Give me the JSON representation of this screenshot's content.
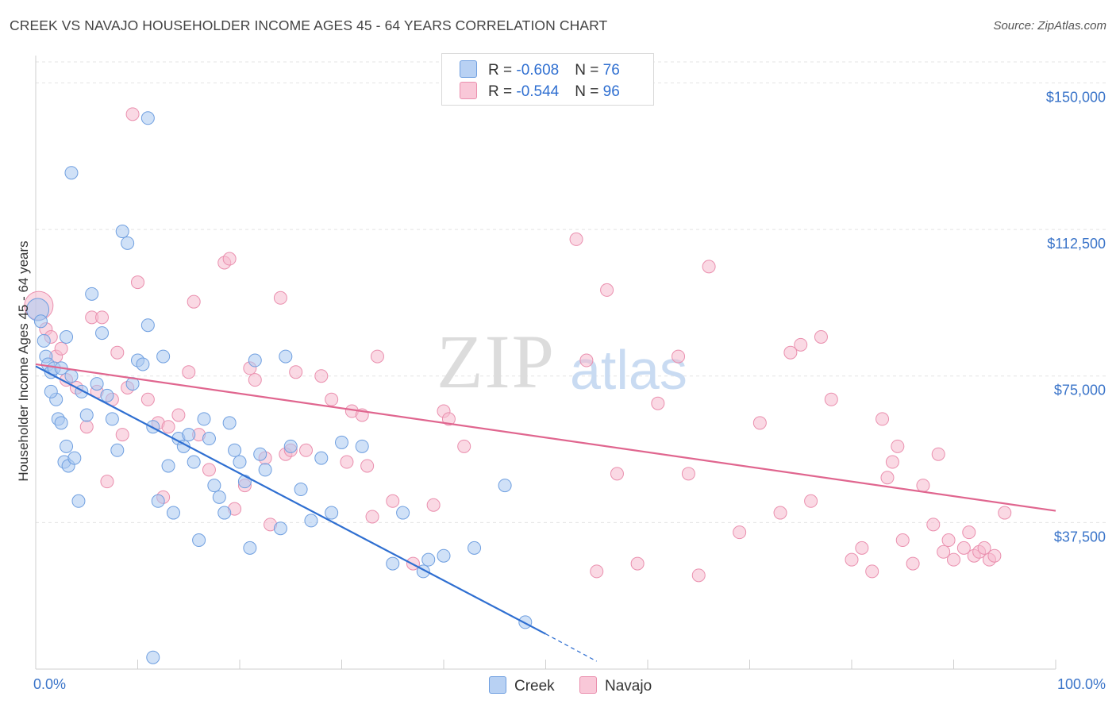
{
  "title": "CREEK VS NAVAJO HOUSEHOLDER INCOME AGES 45 - 64 YEARS CORRELATION CHART",
  "source": "Source: ZipAtlas.com",
  "watermark": {
    "zip": "ZIP",
    "atlas": "atlas"
  },
  "legend": {
    "creek": {
      "r_label": "R = ",
      "r_value": "-0.608",
      "n_label": "N = ",
      "n_value": "76"
    },
    "navajo": {
      "r_label": "R = ",
      "r_value": "-0.544",
      "n_label": "N = ",
      "n_value": "96"
    }
  },
  "chart_data": {
    "type": "scatter",
    "title": "CREEK VS NAVAJO HOUSEHOLDER INCOME AGES 45 - 64 YEARS CORRELATION CHART",
    "xlabel": "",
    "ylabel": "Householder Income Ages 45 - 64 years",
    "xlim": [
      0,
      100
    ],
    "ylim": [
      0,
      157000
    ],
    "x_tick_labels": {
      "min": "0.0%",
      "max": "100.0%"
    },
    "y_ticks": [
      {
        "value": 37500,
        "label": "$37,500"
      },
      {
        "value": 75000,
        "label": "$75,000"
      },
      {
        "value": 112500,
        "label": "$112,500"
      },
      {
        "value": 150000,
        "label": "$150,000"
      }
    ],
    "colors": {
      "creek_fill": "#a9c8f0",
      "creek_stroke": "#6f9fe0",
      "creek_line": "#2f6fd1",
      "navajo_fill": "#f6b9cd",
      "navajo_stroke": "#ea8fae",
      "navajo_line": "#e0668f",
      "tick_text": "#3a74c9"
    },
    "series": [
      {
        "name": "Creek",
        "r": -0.608,
        "n": 76,
        "trend": {
          "x0": 0,
          "y0": 77500,
          "x1": 50,
          "y1": 9000,
          "dash_to_x": 55,
          "dash_to_y": 2000
        },
        "points": [
          [
            0.2,
            92000,
            14
          ],
          [
            0.5,
            89000,
            8
          ],
          [
            0.8,
            84000,
            8
          ],
          [
            1.0,
            80000,
            8
          ],
          [
            1.2,
            78000,
            8
          ],
          [
            1.5,
            76000,
            8
          ],
          [
            1.8,
            77000,
            8
          ],
          [
            2.0,
            69000,
            8
          ],
          [
            2.2,
            64000,
            8
          ],
          [
            2.5,
            63000,
            8
          ],
          [
            2.8,
            53000,
            8
          ],
          [
            3.0,
            57000,
            8
          ],
          [
            3.2,
            52000,
            8
          ],
          [
            3.5,
            75000,
            8
          ],
          [
            3.8,
            54000,
            8
          ],
          [
            4.2,
            43000,
            8
          ],
          [
            4.5,
            71000,
            8
          ],
          [
            5.0,
            65000,
            8
          ],
          [
            5.5,
            96000,
            8
          ],
          [
            6.0,
            73000,
            8
          ],
          [
            6.5,
            86000,
            8
          ],
          [
            7.0,
            70000,
            8
          ],
          [
            7.5,
            64000,
            8
          ],
          [
            8.0,
            56000,
            8
          ],
          [
            8.5,
            112000,
            8
          ],
          [
            9.0,
            109000,
            8
          ],
          [
            9.5,
            73000,
            8
          ],
          [
            10.0,
            79000,
            8
          ],
          [
            10.5,
            78000,
            8
          ],
          [
            11.0,
            88000,
            8
          ],
          [
            11.5,
            62000,
            8
          ],
          [
            12.0,
            43000,
            8
          ],
          [
            12.5,
            80000,
            8
          ],
          [
            13.0,
            52000,
            8
          ],
          [
            13.5,
            40000,
            8
          ],
          [
            14.0,
            59000,
            8
          ],
          [
            14.5,
            57000,
            8
          ],
          [
            15.0,
            60000,
            8
          ],
          [
            15.5,
            53000,
            8
          ],
          [
            16.0,
            33000,
            8
          ],
          [
            16.5,
            64000,
            8
          ],
          [
            17.0,
            59000,
            8
          ],
          [
            17.5,
            47000,
            8
          ],
          [
            18.0,
            44000,
            8
          ],
          [
            18.5,
            40000,
            8
          ],
          [
            19.0,
            63000,
            8
          ],
          [
            19.5,
            56000,
            8
          ],
          [
            20.0,
            53000,
            8
          ],
          [
            20.5,
            48000,
            8
          ],
          [
            21.0,
            31000,
            8
          ],
          [
            21.5,
            79000,
            8
          ],
          [
            22.0,
            55000,
            8
          ],
          [
            22.5,
            51000,
            8
          ],
          [
            24.0,
            36000,
            8
          ],
          [
            24.5,
            80000,
            8
          ],
          [
            25.0,
            57000,
            8
          ],
          [
            26.0,
            46000,
            8
          ],
          [
            27.0,
            38000,
            8
          ],
          [
            28.0,
            54000,
            8
          ],
          [
            29.0,
            40000,
            8
          ],
          [
            30.0,
            58000,
            8
          ],
          [
            32.0,
            57000,
            8
          ],
          [
            35.0,
            27000,
            8
          ],
          [
            36.0,
            40000,
            8
          ],
          [
            38.0,
            25000,
            8
          ],
          [
            38.5,
            28000,
            8
          ],
          [
            40.0,
            29000,
            8
          ],
          [
            43.0,
            31000,
            8
          ],
          [
            46.0,
            47000,
            8
          ],
          [
            48.0,
            12000,
            8
          ],
          [
            11.0,
            141000,
            8
          ],
          [
            3.5,
            127000,
            8
          ],
          [
            3.0,
            85000,
            8
          ],
          [
            2.5,
            77000,
            8
          ],
          [
            11.5,
            3000,
            8
          ],
          [
            1.5,
            71000,
            8
          ]
        ]
      },
      {
        "name": "Navajo",
        "r": -0.544,
        "n": 96,
        "trend": {
          "x0": 0,
          "y0": 78000,
          "x1": 100,
          "y1": 40500
        },
        "points": [
          [
            0.3,
            93000,
            18
          ],
          [
            1.0,
            87000,
            8
          ],
          [
            1.5,
            85000,
            8
          ],
          [
            2.0,
            80000,
            8
          ],
          [
            2.5,
            82000,
            8
          ],
          [
            3.0,
            74000,
            8
          ],
          [
            4.0,
            72000,
            8
          ],
          [
            5.0,
            62000,
            8
          ],
          [
            5.5,
            90000,
            8
          ],
          [
            6.0,
            71000,
            8
          ],
          [
            6.5,
            90000,
            8
          ],
          [
            7.0,
            48000,
            8
          ],
          [
            7.5,
            69000,
            8
          ],
          [
            8.0,
            81000,
            8
          ],
          [
            8.5,
            60000,
            8
          ],
          [
            9.0,
            72000,
            8
          ],
          [
            9.5,
            142000,
            8
          ],
          [
            10.0,
            99000,
            8
          ],
          [
            11.0,
            69000,
            8
          ],
          [
            12.0,
            63000,
            8
          ],
          [
            12.5,
            44000,
            8
          ],
          [
            13.0,
            62000,
            8
          ],
          [
            14.0,
            65000,
            8
          ],
          [
            15.0,
            76000,
            8
          ],
          [
            15.5,
            94000,
            8
          ],
          [
            16.0,
            60000,
            8
          ],
          [
            17.0,
            51000,
            8
          ],
          [
            18.5,
            104000,
            8
          ],
          [
            19.0,
            105000,
            8
          ],
          [
            19.5,
            41000,
            8
          ],
          [
            20.5,
            47000,
            8
          ],
          [
            21.0,
            77000,
            8
          ],
          [
            21.5,
            74000,
            8
          ],
          [
            22.5,
            54000,
            8
          ],
          [
            23.0,
            37000,
            8
          ],
          [
            24.0,
            95000,
            8
          ],
          [
            24.5,
            55000,
            8
          ],
          [
            25.0,
            56000,
            8
          ],
          [
            25.5,
            76000,
            8
          ],
          [
            26.5,
            56000,
            8
          ],
          [
            28.0,
            75000,
            8
          ],
          [
            29.0,
            69000,
            8
          ],
          [
            30.5,
            53000,
            8
          ],
          [
            31.0,
            66000,
            8
          ],
          [
            32.0,
            65000,
            8
          ],
          [
            32.5,
            52000,
            8
          ],
          [
            33.0,
            39000,
            8
          ],
          [
            33.5,
            80000,
            8
          ],
          [
            35.0,
            43000,
            8
          ],
          [
            37.0,
            27000,
            8
          ],
          [
            39.0,
            42000,
            8
          ],
          [
            40.0,
            66000,
            8
          ],
          [
            40.5,
            64000,
            8
          ],
          [
            42.0,
            57000,
            8
          ],
          [
            53.0,
            110000,
            8
          ],
          [
            54.0,
            79000,
            8
          ],
          [
            55.0,
            25000,
            8
          ],
          [
            56.0,
            97000,
            8
          ],
          [
            57.0,
            50000,
            8
          ],
          [
            59.0,
            27000,
            8
          ],
          [
            61.0,
            68000,
            8
          ],
          [
            63.0,
            80000,
            8
          ],
          [
            64.0,
            50000,
            8
          ],
          [
            65.0,
            24000,
            8
          ],
          [
            66.0,
            103000,
            8
          ],
          [
            69.0,
            35000,
            8
          ],
          [
            71.0,
            63000,
            8
          ],
          [
            73.0,
            40000,
            8
          ],
          [
            74.0,
            81000,
            8
          ],
          [
            75.0,
            83000,
            8
          ],
          [
            76.0,
            43000,
            8
          ],
          [
            77.0,
            85000,
            8
          ],
          [
            78.0,
            69000,
            8
          ],
          [
            80.0,
            28000,
            8
          ],
          [
            81.0,
            31000,
            8
          ],
          [
            82.0,
            25000,
            8
          ],
          [
            83.0,
            64000,
            8
          ],
          [
            83.5,
            49000,
            8
          ],
          [
            84.0,
            53000,
            8
          ],
          [
            84.5,
            57000,
            8
          ],
          [
            85.0,
            33000,
            8
          ],
          [
            86.0,
            27000,
            8
          ],
          [
            87.0,
            47000,
            8
          ],
          [
            88.0,
            37000,
            8
          ],
          [
            88.5,
            55000,
            8
          ],
          [
            89.0,
            30000,
            8
          ],
          [
            89.5,
            33000,
            8
          ],
          [
            90.0,
            28000,
            8
          ],
          [
            91.0,
            31000,
            8
          ],
          [
            91.5,
            35000,
            8
          ],
          [
            92.0,
            29000,
            8
          ],
          [
            92.5,
            30000,
            8
          ],
          [
            93.0,
            31000,
            8
          ],
          [
            93.5,
            28000,
            8
          ],
          [
            94.0,
            29000,
            8
          ],
          [
            95.0,
            40000,
            8
          ]
        ]
      }
    ]
  }
}
